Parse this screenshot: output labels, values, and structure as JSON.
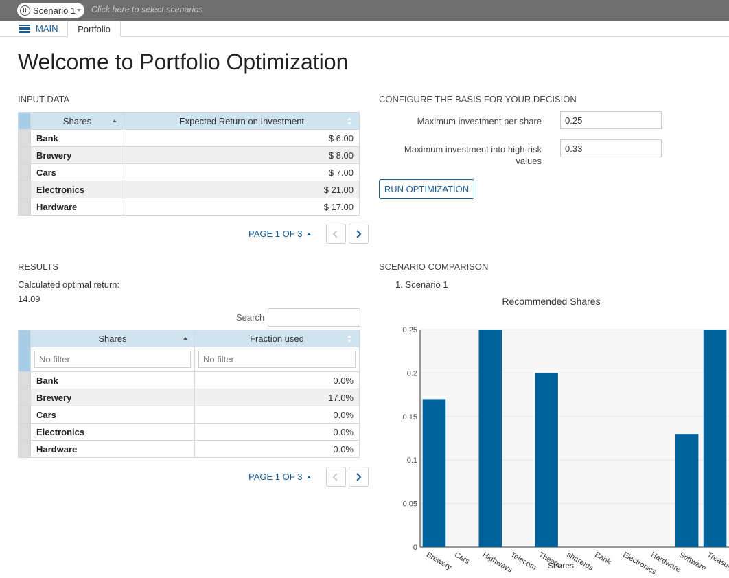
{
  "topbar": {
    "scenario_label": "Scenario 1",
    "select_hint": "Click here to select scenarios"
  },
  "tabs": {
    "main_label": "MAIN",
    "portfolio_label": "Portfolio"
  },
  "page_title": "Welcome to Portfolio Optimization",
  "input_data": {
    "title": "INPUT DATA",
    "columns": [
      "Shares",
      "Expected Return on Investment"
    ],
    "rows": [
      {
        "share": "Bank",
        "value": "$ 6.00"
      },
      {
        "share": "Brewery",
        "value": "$ 8.00"
      },
      {
        "share": "Cars",
        "value": "$ 7.00"
      },
      {
        "share": "Electronics",
        "value": "$ 21.00"
      },
      {
        "share": "Hardware",
        "value": "$ 17.00"
      }
    ],
    "pager": "PAGE 1 OF 3"
  },
  "config": {
    "title": "CONFIGURE THE BASIS FOR YOUR DECISION",
    "max_per_share_label": "Maximum investment per share",
    "max_per_share_value": "0.25",
    "max_high_risk_label_1": "Maximum investment into high-risk",
    "max_high_risk_label_2": "values",
    "max_high_risk_value": "0.33",
    "run_button": "RUN OPTIMIZATION"
  },
  "results": {
    "title": "RESULTS",
    "optimal_label": "Calculated optimal return:",
    "optimal_value": "14.09",
    "search_label": "Search",
    "columns": [
      "Shares",
      "Fraction used"
    ],
    "filter_placeholder": "No filter",
    "rows": [
      {
        "share": "Bank",
        "value": "0.0%"
      },
      {
        "share": "Brewery",
        "value": "17.0%"
      },
      {
        "share": "Cars",
        "value": "0.0%"
      },
      {
        "share": "Electronics",
        "value": "0.0%"
      },
      {
        "share": "Hardware",
        "value": "0.0%"
      }
    ],
    "pager": "PAGE 1 OF 3"
  },
  "comparison": {
    "title": "SCENARIO COMPARISON",
    "scenario_item": "1. Scenario 1"
  },
  "chart_data": {
    "type": "bar",
    "title": "Recommended Shares",
    "xlabel": "Shares",
    "ylabel": "",
    "categories": [
      "Brewery",
      "Cars",
      "Highways",
      "Telecom",
      "Theater",
      "shareIds",
      "Bank",
      "Electronics",
      "Hardware",
      "Software",
      "Treasury"
    ],
    "values": [
      0.17,
      0,
      0.25,
      0,
      0.2,
      0,
      0,
      0,
      0,
      0.13,
      0.25
    ],
    "yticks": [
      "0",
      "0.05",
      "0.1",
      "0.15",
      "0.2",
      "0.25"
    ],
    "ylim": [
      0,
      0.25
    ],
    "bar_color": "#00629b",
    "grid": true
  },
  "colors": {
    "accent": "#1a5e96",
    "header_bg": "#cfe3f1",
    "topbar_bg": "#6e6e6e"
  }
}
